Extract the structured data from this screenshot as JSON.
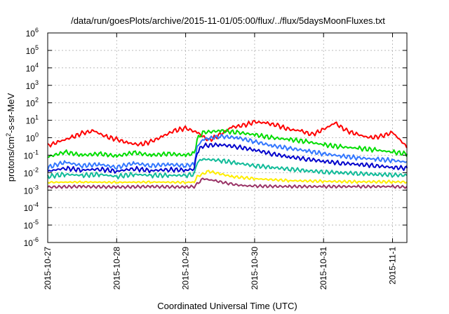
{
  "chart_data": {
    "type": "line",
    "title": "/data/run/goesPlots/archive/2015-11-01/05:00/flux/../flux/5daysMoonFluxes.txt",
    "xlabel": "Coordinated Universal Time (UTC)",
    "ylabel": "protons/cm2-s-sr-MeV",
    "ylabel_parts": {
      "pre": "protons/cm",
      "sup": "2",
      "post": "-s-sr-MeV"
    },
    "yscale": "log",
    "ylim": [
      1e-06,
      1000000
    ],
    "xlim": [
      "2015-10-27T00:00",
      "2015-11-01T05:00"
    ],
    "grid": true,
    "x_ticks": [
      "2015-10-27",
      "2015-10-28",
      "2015-10-29",
      "2015-10-30",
      "2015-10-31",
      "2015-11-1"
    ],
    "y_ticks": [
      {
        "value": 1e-06,
        "base": "10",
        "exp": "-6"
      },
      {
        "value": 1e-05,
        "base": "10",
        "exp": "-5"
      },
      {
        "value": 0.0001,
        "base": "10",
        "exp": "-4"
      },
      {
        "value": 0.001,
        "base": "10",
        "exp": "-3"
      },
      {
        "value": 0.01,
        "base": "10",
        "exp": "-2"
      },
      {
        "value": 0.1,
        "base": "10",
        "exp": "-1"
      },
      {
        "value": 1,
        "base": "10",
        "exp": "0"
      },
      {
        "value": 10,
        "base": "10",
        "exp": "1"
      },
      {
        "value": 100,
        "base": "10",
        "exp": "2"
      },
      {
        "value": 1000,
        "base": "10",
        "exp": "3"
      },
      {
        "value": 10000,
        "base": "10",
        "exp": "4"
      },
      {
        "value": 100000,
        "base": "10",
        "exp": "5"
      },
      {
        "value": 1000000,
        "base": "10",
        "exp": "6"
      }
    ],
    "series": [
      {
        "color": "#ff0000",
        "x": [
          "2015-10-27T00:00",
          "2015-10-27T04:00",
          "2015-10-27T08:00",
          "2015-10-27T12:00",
          "2015-10-27T16:00",
          "2015-10-27T20:00",
          "2015-10-28T00:00",
          "2015-10-28T04:00",
          "2015-10-28T08:00",
          "2015-10-28T12:00",
          "2015-10-28T16:00",
          "2015-10-28T20:00",
          "2015-10-29T00:00",
          "2015-10-29T04:00",
          "2015-10-29T08:00",
          "2015-10-29T12:00",
          "2015-10-29T16:00",
          "2015-10-29T20:00",
          "2015-10-30T00:00",
          "2015-10-30T04:00",
          "2015-10-30T08:00",
          "2015-10-30T12:00",
          "2015-10-30T16:00",
          "2015-10-30T20:00",
          "2015-10-31T00:00",
          "2015-10-31T04:00",
          "2015-10-31T08:00",
          "2015-10-31T12:00",
          "2015-10-31T16:00",
          "2015-10-31T20:00",
          "2015-11-01T00:00",
          "2015-11-01T05:00"
        ],
        "values": [
          0.35,
          0.6,
          1.0,
          1.8,
          2.5,
          1.2,
          0.8,
          0.5,
          0.4,
          0.6,
          1.2,
          2.5,
          3.5,
          2.0,
          0.7,
          1.5,
          4.0,
          5.0,
          8.0,
          7.0,
          5.0,
          3.0,
          2.5,
          1.5,
          3.0,
          7.0,
          2.5,
          1.5,
          1.0,
          1.2,
          2.0,
          0.3
        ]
      },
      {
        "color": "#00dd00",
        "x": [
          "2015-10-27T00:00",
          "2015-10-27T06:00",
          "2015-10-27T12:00",
          "2015-10-27T18:00",
          "2015-10-28T00:00",
          "2015-10-28T06:00",
          "2015-10-28T12:00",
          "2015-10-28T18:00",
          "2015-10-29T00:00",
          "2015-10-29T03:00",
          "2015-10-29T04:00",
          "2015-10-29T06:00",
          "2015-10-29T12:00",
          "2015-10-29T18:00",
          "2015-10-30T00:00",
          "2015-10-30T06:00",
          "2015-10-30T12:00",
          "2015-10-30T18:00",
          "2015-10-31T00:00",
          "2015-10-31T06:00",
          "2015-10-31T12:00",
          "2015-10-31T18:00",
          "2015-11-01T00:00",
          "2015-11-01T05:00"
        ],
        "values": [
          0.08,
          0.15,
          0.1,
          0.12,
          0.09,
          0.14,
          0.1,
          0.12,
          0.1,
          0.13,
          0.8,
          2.0,
          2.5,
          2.0,
          1.5,
          1.0,
          0.8,
          0.6,
          0.4,
          0.3,
          0.25,
          0.2,
          0.15,
          0.12
        ]
      },
      {
        "color": "#3377ff",
        "x": [
          "2015-10-27T00:00",
          "2015-10-27T06:00",
          "2015-10-27T12:00",
          "2015-10-27T18:00",
          "2015-10-28T00:00",
          "2015-10-28T06:00",
          "2015-10-28T12:00",
          "2015-10-28T18:00",
          "2015-10-29T00:00",
          "2015-10-29T03:00",
          "2015-10-29T04:00",
          "2015-10-29T06:00",
          "2015-10-29T12:00",
          "2015-10-29T18:00",
          "2015-10-30T00:00",
          "2015-10-30T06:00",
          "2015-10-30T12:00",
          "2015-10-30T18:00",
          "2015-10-31T00:00",
          "2015-10-31T06:00",
          "2015-10-31T12:00",
          "2015-10-31T18:00",
          "2015-11-01T00:00",
          "2015-11-01T05:00"
        ],
        "values": [
          0.02,
          0.04,
          0.025,
          0.03,
          0.02,
          0.035,
          0.025,
          0.03,
          0.025,
          0.03,
          0.3,
          0.8,
          1.2,
          1.0,
          0.6,
          0.35,
          0.25,
          0.18,
          0.12,
          0.09,
          0.07,
          0.06,
          0.05,
          0.04
        ]
      },
      {
        "color": "#0000cc",
        "x": [
          "2015-10-27T00:00",
          "2015-10-27T06:00",
          "2015-10-27T12:00",
          "2015-10-27T18:00",
          "2015-10-28T00:00",
          "2015-10-28T06:00",
          "2015-10-28T12:00",
          "2015-10-28T18:00",
          "2015-10-29T00:00",
          "2015-10-29T03:00",
          "2015-10-29T04:00",
          "2015-10-29T06:00",
          "2015-10-29T12:00",
          "2015-10-29T18:00",
          "2015-10-30T00:00",
          "2015-10-30T06:00",
          "2015-10-30T12:00",
          "2015-10-30T18:00",
          "2015-10-31T00:00",
          "2015-10-31T06:00",
          "2015-10-31T12:00",
          "2015-10-31T18:00",
          "2015-11-01T00:00",
          "2015-11-01T05:00"
        ],
        "values": [
          0.012,
          0.018,
          0.014,
          0.016,
          0.012,
          0.017,
          0.013,
          0.015,
          0.014,
          0.016,
          0.15,
          0.35,
          0.4,
          0.3,
          0.2,
          0.12,
          0.08,
          0.06,
          0.045,
          0.035,
          0.03,
          0.025,
          0.02,
          0.018
        ]
      },
      {
        "color": "#11bb99",
        "x": [
          "2015-10-27T00:00",
          "2015-10-27T06:00",
          "2015-10-27T12:00",
          "2015-10-27T18:00",
          "2015-10-28T00:00",
          "2015-10-28T06:00",
          "2015-10-28T12:00",
          "2015-10-28T18:00",
          "2015-10-29T00:00",
          "2015-10-29T03:00",
          "2015-10-29T04:00",
          "2015-10-29T06:00",
          "2015-10-29T12:00",
          "2015-10-29T18:00",
          "2015-10-30T00:00",
          "2015-10-30T06:00",
          "2015-10-30T12:00",
          "2015-10-30T18:00",
          "2015-10-31T00:00",
          "2015-10-31T06:00",
          "2015-10-31T12:00",
          "2015-10-31T18:00",
          "2015-11-01T00:00",
          "2015-11-01T05:00"
        ],
        "values": [
          0.006,
          0.008,
          0.007,
          0.008,
          0.006,
          0.008,
          0.007,
          0.007,
          0.007,
          0.008,
          0.04,
          0.06,
          0.05,
          0.035,
          0.025,
          0.02,
          0.016,
          0.013,
          0.011,
          0.01,
          0.009,
          0.008,
          0.0075,
          0.007
        ]
      },
      {
        "color": "#ffee00",
        "x": [
          "2015-10-27T00:00",
          "2015-10-27T12:00",
          "2015-10-28T00:00",
          "2015-10-28T12:00",
          "2015-10-29T00:00",
          "2015-10-29T03:00",
          "2015-10-29T04:00",
          "2015-10-29T08:00",
          "2015-10-29T16:00",
          "2015-10-30T00:00",
          "2015-10-30T12:00",
          "2015-10-31T00:00",
          "2015-10-31T12:00",
          "2015-11-01T00:00",
          "2015-11-01T05:00"
        ],
        "values": [
          0.0028,
          0.0029,
          0.0028,
          0.0029,
          0.0028,
          0.0029,
          0.006,
          0.012,
          0.006,
          0.0045,
          0.0035,
          0.0032,
          0.003,
          0.003,
          0.0029
        ]
      },
      {
        "color": "#993366",
        "x": [
          "2015-10-27T00:00",
          "2015-10-27T12:00",
          "2015-10-28T00:00",
          "2015-10-28T12:00",
          "2015-10-29T00:00",
          "2015-10-29T03:00",
          "2015-10-29T06:00",
          "2015-10-29T10:00",
          "2015-10-29T16:00",
          "2015-10-29T20:00",
          "2015-10-30T00:00",
          "2015-10-30T12:00",
          "2015-10-31T00:00",
          "2015-10-31T12:00",
          "2015-11-01T00:00",
          "2015-11-01T05:00"
        ],
        "values": [
          0.0015,
          0.0016,
          0.0015,
          0.0016,
          0.0015,
          0.0016,
          0.0045,
          0.0035,
          0.0022,
          0.0018,
          0.0017,
          0.0016,
          0.0016,
          0.0016,
          0.0016,
          0.0015
        ]
      }
    ]
  }
}
